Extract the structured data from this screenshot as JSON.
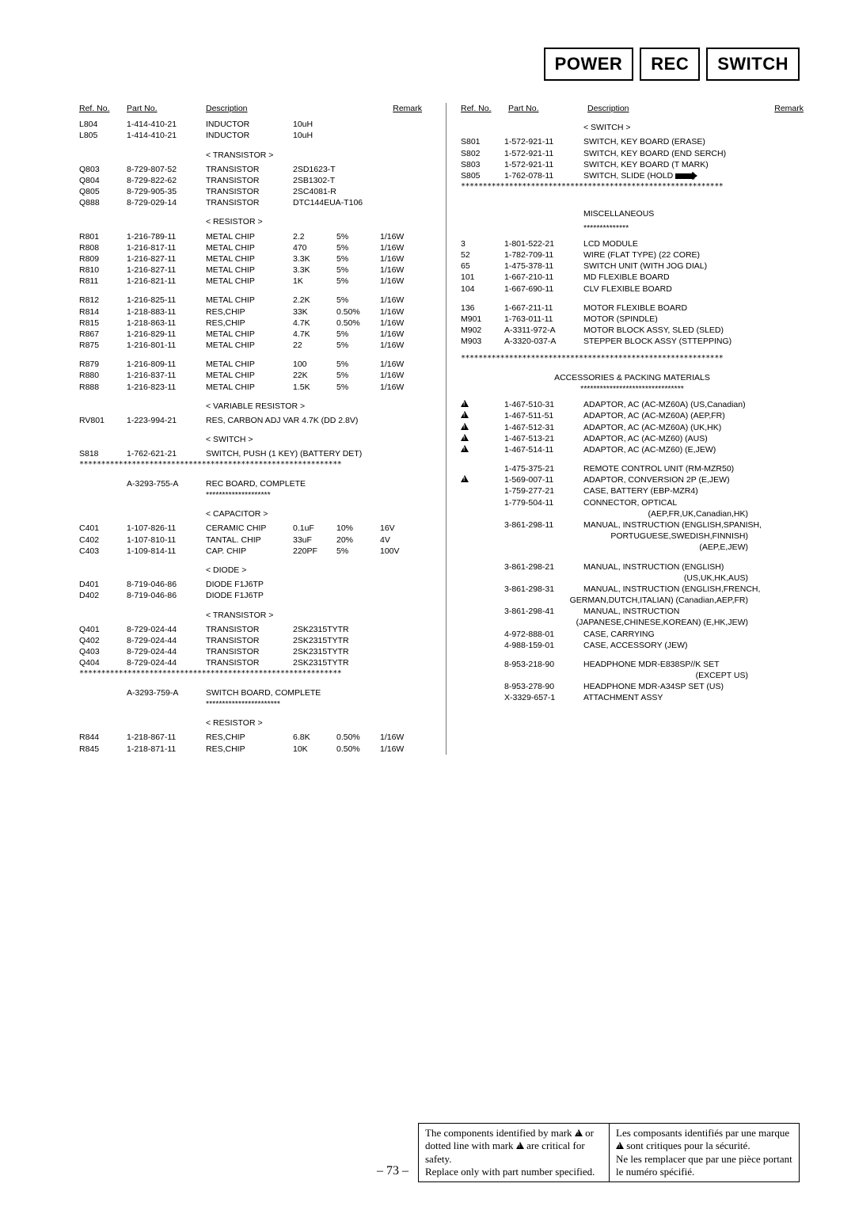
{
  "header_boxes": [
    "POWER",
    "REC",
    "SWITCH"
  ],
  "col_headers": {
    "ref": "Ref. No.",
    "part": "Part No.",
    "desc": "Description",
    "remark": "Remark"
  },
  "left": {
    "rows1": [
      {
        "ref": "L804",
        "part": "1-414-410-21",
        "desc": "INDUCTOR",
        "v1": "10uH"
      },
      {
        "ref": "L805",
        "part": "1-414-410-21",
        "desc": "INDUCTOR",
        "v1": "10uH"
      }
    ],
    "sec_trans": "< TRANSISTOR >",
    "trans": [
      {
        "ref": "Q803",
        "part": "8-729-807-52",
        "desc": "TRANSISTOR",
        "v1": "2SD1623-T"
      },
      {
        "ref": "Q804",
        "part": "8-729-822-62",
        "desc": "TRANSISTOR",
        "v1": "2SB1302-T"
      },
      {
        "ref": "Q805",
        "part": "8-729-905-35",
        "desc": "TRANSISTOR",
        "v1": "2SC4081-R"
      },
      {
        "ref": "Q888",
        "part": "8-729-029-14",
        "desc": "TRANSISTOR",
        "v1": "DTC144EUA-T106"
      }
    ],
    "sec_res": "< RESISTOR >",
    "res1": [
      {
        "ref": "R801",
        "part": "1-216-789-11",
        "desc": "METAL CHIP",
        "v1": "2.2",
        "v2": "5%",
        "v3": "1/16W"
      },
      {
        "ref": "R808",
        "part": "1-216-817-11",
        "desc": "METAL CHIP",
        "v1": "470",
        "v2": "5%",
        "v3": "1/16W"
      },
      {
        "ref": "R809",
        "part": "1-216-827-11",
        "desc": "METAL CHIP",
        "v1": "3.3K",
        "v2": "5%",
        "v3": "1/16W"
      },
      {
        "ref": "R810",
        "part": "1-216-827-11",
        "desc": "METAL CHIP",
        "v1": "3.3K",
        "v2": "5%",
        "v3": "1/16W"
      },
      {
        "ref": "R811",
        "part": "1-216-821-11",
        "desc": "METAL CHIP",
        "v1": "1K",
        "v2": "5%",
        "v3": "1/16W"
      }
    ],
    "res2": [
      {
        "ref": "R812",
        "part": "1-216-825-11",
        "desc": "METAL CHIP",
        "v1": "2.2K",
        "v2": "5%",
        "v3": "1/16W"
      },
      {
        "ref": "R814",
        "part": "1-218-883-11",
        "desc": "RES,CHIP",
        "v1": "33K",
        "v2": "0.50%",
        "v3": "1/16W"
      },
      {
        "ref": "R815",
        "part": "1-218-863-11",
        "desc": "RES,CHIP",
        "v1": "4.7K",
        "v2": "0.50%",
        "v3": "1/16W"
      },
      {
        "ref": "R867",
        "part": "1-216-829-11",
        "desc": "METAL CHIP",
        "v1": "4.7K",
        "v2": "5%",
        "v3": "1/16W"
      },
      {
        "ref": "R875",
        "part": "1-216-801-11",
        "desc": "METAL CHIP",
        "v1": "22",
        "v2": "5%",
        "v3": "1/16W"
      }
    ],
    "res3": [
      {
        "ref": "R879",
        "part": "1-216-809-11",
        "desc": "METAL CHIP",
        "v1": "100",
        "v2": "5%",
        "v3": "1/16W"
      },
      {
        "ref": "R880",
        "part": "1-216-837-11",
        "desc": "METAL CHIP",
        "v1": "22K",
        "v2": "5%",
        "v3": "1/16W"
      },
      {
        "ref": "R888",
        "part": "1-216-823-11",
        "desc": "METAL CHIP",
        "v1": "1.5K",
        "v2": "5%",
        "v3": "1/16W"
      }
    ],
    "sec_var": "< VARIABLE RESISTOR >",
    "var": [
      {
        "ref": "RV801",
        "part": "1-223-994-21",
        "desc": "RES, CARBON ADJ VAR 4.7K (DD 2.8V)"
      }
    ],
    "sec_sw": "< SWITCH >",
    "sw": [
      {
        "ref": "S818",
        "part": "1-762-621-21",
        "desc": "SWITCH, PUSH (1 KEY) (BATTERY DET)"
      }
    ],
    "rec_board": {
      "part": "A-3293-755-A",
      "desc": "REC BOARD, COMPLETE"
    },
    "sec_cap": "< CAPACITOR >",
    "cap": [
      {
        "ref": "C401",
        "part": "1-107-826-11",
        "desc": "CERAMIC CHIP",
        "v1": "0.1uF",
        "v2": "10%",
        "v3": "16V"
      },
      {
        "ref": "C402",
        "part": "1-107-810-11",
        "desc": "TANTAL. CHIP",
        "v1": "33uF",
        "v2": "20%",
        "v3": "4V"
      },
      {
        "ref": "C403",
        "part": "1-109-814-11",
        "desc": "CAP. CHIP",
        "v1": "220PF",
        "v2": "5%",
        "v3": "100V"
      }
    ],
    "sec_diode": "< DIODE >",
    "diode": [
      {
        "ref": "D401",
        "part": "8-719-046-86",
        "desc": "DIODE F1J6TP"
      },
      {
        "ref": "D402",
        "part": "8-719-046-86",
        "desc": "DIODE F1J6TP"
      }
    ],
    "sec_trans2": "< TRANSISTOR >",
    "trans2": [
      {
        "ref": "Q401",
        "part": "8-729-024-44",
        "desc": "TRANSISTOR",
        "v1": "2SK2315TYTR"
      },
      {
        "ref": "Q402",
        "part": "8-729-024-44",
        "desc": "TRANSISTOR",
        "v1": "2SK2315TYTR"
      },
      {
        "ref": "Q403",
        "part": "8-729-024-44",
        "desc": "TRANSISTOR",
        "v1": "2SK2315TYTR"
      },
      {
        "ref": "Q404",
        "part": "8-729-024-44",
        "desc": "TRANSISTOR",
        "v1": "2SK2315TYTR"
      }
    ],
    "sw_board": {
      "part": "A-3293-759-A",
      "desc": "SWITCH BOARD, COMPLETE"
    },
    "sec_res2": "< RESISTOR >",
    "res4": [
      {
        "ref": "R844",
        "part": "1-218-867-11",
        "desc": "RES,CHIP",
        "v1": "6.8K",
        "v2": "0.50%",
        "v3": "1/16W"
      },
      {
        "ref": "R845",
        "part": "1-218-871-11",
        "desc": "RES,CHIP",
        "v1": "10K",
        "v2": "0.50%",
        "v3": "1/16W"
      }
    ]
  },
  "right": {
    "sec_sw": "< SWITCH >",
    "sw": [
      {
        "ref": "S801",
        "part": "1-572-921-11",
        "desc": "SWITCH, KEY BOARD (ERASE)"
      },
      {
        "ref": "S802",
        "part": "1-572-921-11",
        "desc": "SWITCH, KEY BOARD (END SERCH)"
      },
      {
        "ref": "S803",
        "part": "1-572-921-11",
        "desc": "SWITCH, KEY BOARD (T MARK)"
      },
      {
        "ref": "S805",
        "part": "1-762-078-11",
        "desc": "SWITCH, SLIDE (HOLD",
        "arrow": true,
        "tail": ")"
      }
    ],
    "misc_hdr": "MISCELLANEOUS",
    "misc": [
      {
        "ref": "3",
        "part": "1-801-522-21",
        "desc": "LCD MODULE"
      },
      {
        "ref": "52",
        "part": "1-782-709-11",
        "desc": "WIRE (FLAT TYPE) (22 CORE)"
      },
      {
        "ref": "65",
        "part": "1-475-378-11",
        "desc": "SWITCH UNIT (WITH JOG DIAL)"
      },
      {
        "ref": "101",
        "part": "1-667-210-11",
        "desc": "MD FLEXIBLE BOARD"
      },
      {
        "ref": "104",
        "part": "1-667-690-11",
        "desc": "CLV FLEXIBLE BOARD"
      }
    ],
    "misc2": [
      {
        "ref": "136",
        "part": "1-667-211-11",
        "desc": "MOTOR FLEXIBLE BOARD"
      },
      {
        "ref": "M901",
        "part": "1-763-011-11",
        "desc": "MOTOR (SPINDLE)"
      },
      {
        "ref": "M902",
        "part": "A-3311-972-A",
        "desc": "MOTOR BLOCK ASSY, SLED (SLED)"
      },
      {
        "ref": "M903",
        "part": "A-3320-037-A",
        "desc": "STEPPER BLOCK ASSY (STTEPPING)"
      }
    ],
    "acc_hdr": "ACCESSORIES & PACKING MATERIALS",
    "adapt": [
      {
        "tri": true,
        "part": "1-467-510-31",
        "desc": "ADAPTOR, AC (AC-MZ60A) (US,Canadian)"
      },
      {
        "tri": true,
        "part": "1-467-511-51",
        "desc": "ADAPTOR, AC (AC-MZ60A) (AEP,FR)"
      },
      {
        "tri": true,
        "part": "1-467-512-31",
        "desc": "ADAPTOR, AC (AC-MZ60A) (UK,HK)"
      },
      {
        "tri": true,
        "part": "1-467-513-21",
        "desc": "ADAPTOR, AC (AC-MZ60) (AUS)"
      },
      {
        "tri": true,
        "part": "1-467-514-11",
        "desc": "ADAPTOR, AC (AC-MZ60) (E,JEW)"
      }
    ],
    "acc2": [
      {
        "part": "1-475-375-21",
        "desc": "REMOTE CONTROL UNIT (RM-MZR50)"
      },
      {
        "tri": true,
        "part": "1-569-007-11",
        "desc": "ADAPTOR, CONVERSION 2P (E,JEW)"
      },
      {
        "part": "1-759-277-21",
        "desc": "CASE, BATTERY (EBP-MZR4)"
      },
      {
        "part": "1-779-504-11",
        "desc": "CONNECTOR, OPTICAL"
      }
    ],
    "acc2_tail": "(AEP,FR,UK,Canadian,HK)",
    "manual1": {
      "part": "3-861-298-11",
      "desc": "MANUAL, INSTRUCTION (ENGLISH,SPANISH,"
    },
    "manual1_tail": "PORTUGUESE,SWEDISH,FINNISH)",
    "manual1_tail2": "(AEP,E,JEW)",
    "manual2": {
      "part": "3-861-298-21",
      "desc": "MANUAL, INSTRUCTION (ENGLISH)"
    },
    "manual2_tail": "(US,UK,HK,AUS)",
    "manual3": {
      "part": "3-861-298-31",
      "desc": "MANUAL, INSTRUCTION (ENGLISH,FRENCH,"
    },
    "manual3_tail": "GERMAN,DUTCH,ITALIAN) (Canadian,AEP,FR)",
    "manual4": {
      "part": "3-861-298-41",
      "desc": "MANUAL, INSTRUCTION"
    },
    "manual4_tail": "(JAPANESE,CHINESE,KOREAN) (E,HK,JEW)",
    "case1": {
      "part": "4-972-888-01",
      "desc": "CASE, CARRYING"
    },
    "case2": {
      "part": "4-988-159-01",
      "desc": "CASE, ACCESSORY (JEW)"
    },
    "hp1": {
      "part": "8-953-218-90",
      "desc": "HEADPHONE MDR-E838SP//K SET"
    },
    "hp1_tail": "(EXCEPT US)",
    "hp2": {
      "part": "8-953-278-90",
      "desc": "HEADPHONE MDR-A34SP SET (US)"
    },
    "att": {
      "part": "X-3329-657-1",
      "desc": "ATTACHMENT ASSY"
    }
  },
  "footer": {
    "page": "– 73 –",
    "en": "The components identified by mark ⚠ or dotted line with mark ⚠ are critical for safety.\nReplace only with part number specified.",
    "fr": "Les composants identifiés par une marque ⚠ sont critiques pour la sécurité.\nNe les remplacer que par une pièce portant le numéro spécifié."
  }
}
